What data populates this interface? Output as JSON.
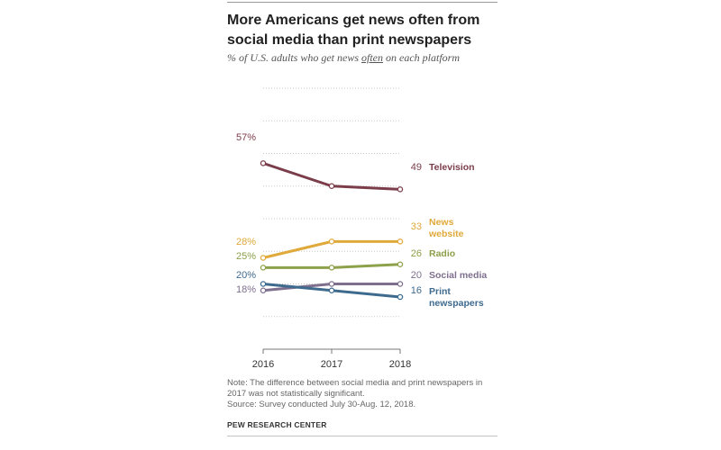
{
  "header": {
    "title_line1": "More Americans get news often from",
    "title_line2": "social media than print newspapers",
    "subtitle_prefix": "% of U.S. adults who get news ",
    "subtitle_emphasis": "often",
    "subtitle_suffix": " on each platform"
  },
  "chart_data": {
    "type": "line",
    "title": "More Americans get news often from social media than print newspapers",
    "subtitle": "% of U.S. adults who get news often on each platform",
    "x": [
      "2016",
      "2017",
      "2018"
    ],
    "ylim": [
      0,
      80
    ],
    "grid": true,
    "series": [
      {
        "name": "Television",
        "label_lines": [
          "Television"
        ],
        "values": [
          57,
          50,
          49
        ],
        "color": "#7b3d4a",
        "start_label": "57%",
        "end_label": "49"
      },
      {
        "name": "News website",
        "label_lines": [
          "News",
          "website"
        ],
        "values": [
          28,
          33,
          33
        ],
        "color": "#e0a93b",
        "start_label": "28%",
        "end_label": "33"
      },
      {
        "name": "Radio",
        "label_lines": [
          "Radio"
        ],
        "values": [
          25,
          25,
          26
        ],
        "color": "#8da04a",
        "start_label": "25%",
        "end_label": "26"
      },
      {
        "name": "Social media",
        "label_lines": [
          "Social media"
        ],
        "values": [
          18,
          20,
          20
        ],
        "color": "#7e6f8e",
        "start_label": "18%",
        "end_label": "20"
      },
      {
        "name": "Print newspapers",
        "label_lines": [
          "Print",
          "newspapers"
        ],
        "values": [
          20,
          18,
          16
        ],
        "color": "#3e6a8e",
        "start_label": "20%",
        "end_label": "16"
      }
    ]
  },
  "footer": {
    "note_line1": "Note: The difference between social media and print newspapers in",
    "note_line2": "2017 was not statistically significant.",
    "source": "Source: Survey conducted July 30-Aug. 12, 2018.",
    "credit": "PEW RESEARCH CENTER"
  }
}
